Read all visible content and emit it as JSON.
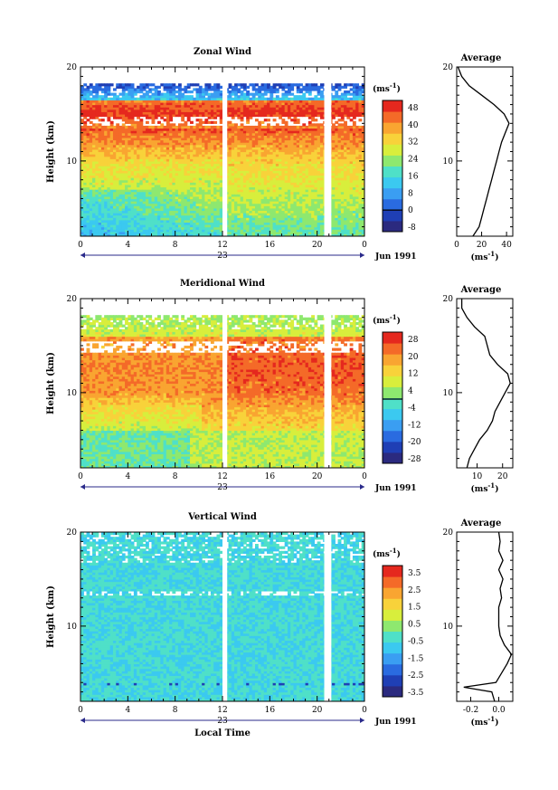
{
  "figure": {
    "date_label": "Jun 1991",
    "day_label": "23",
    "xlabel": "Local Time",
    "unit_label": "(ms",
    "unit_exp": "-1",
    "unit_close": ")"
  },
  "chart_data": [
    {
      "type": "heatmap",
      "title": "Zonal Wind",
      "ylabel": "Height (km)",
      "xlabel": "",
      "x_ticks": [
        "0",
        "4",
        "8",
        "12",
        "16",
        "20",
        "0"
      ],
      "xlim_hours": [
        0,
        24
      ],
      "y_ticks": [
        "10",
        "20"
      ],
      "ylim_km": [
        2,
        20
      ],
      "colorbar": {
        "ticks": [
          "-8",
          "0",
          "8",
          "16",
          "24",
          "32",
          "40",
          "48"
        ],
        "levels": [
          -8,
          0,
          8,
          16,
          24,
          32,
          40,
          48
        ],
        "zero_line": 0
      },
      "profile": {
        "title": "Average",
        "x_ticks": [
          "0",
          "20",
          "40"
        ],
        "xlim": [
          0,
          45
        ],
        "xlabel_unit": "ms-1",
        "points": [
          [
            2,
            13
          ],
          [
            3,
            18
          ],
          [
            4,
            20
          ],
          [
            5,
            22
          ],
          [
            6,
            24
          ],
          [
            7,
            26
          ],
          [
            8,
            28
          ],
          [
            9,
            30
          ],
          [
            10,
            32
          ],
          [
            11,
            34
          ],
          [
            12,
            36
          ],
          [
            13,
            39
          ],
          [
            14,
            42
          ],
          [
            15,
            38
          ],
          [
            16,
            30
          ],
          [
            17,
            20
          ],
          [
            18,
            10
          ],
          [
            19,
            4
          ],
          [
            20,
            1
          ]
        ]
      },
      "gaps_hours": [
        [
          12.0,
          12.4
        ],
        [
          20.6,
          21.2
        ]
      ]
    },
    {
      "type": "heatmap",
      "title": "Meridional Wind",
      "ylabel": "Height (km)",
      "xlabel": "",
      "x_ticks": [
        "0",
        "4",
        "8",
        "12",
        "16",
        "20",
        "0"
      ],
      "xlim_hours": [
        0,
        24
      ],
      "y_ticks": [
        "10",
        "20"
      ],
      "ylim_km": [
        2,
        20
      ],
      "colorbar": {
        "ticks": [
          "-28",
          "-20",
          "-12",
          "-4",
          "4",
          "12",
          "20",
          "28"
        ],
        "levels": [
          -28,
          -20,
          -12,
          -4,
          4,
          12,
          20,
          28
        ],
        "zero_line": 0
      },
      "profile": {
        "title": "Average",
        "x_ticks": [
          "10",
          "20"
        ],
        "xlim": [
          2,
          24
        ],
        "xlabel_unit": "ms-1",
        "points": [
          [
            2,
            6
          ],
          [
            3,
            7
          ],
          [
            4,
            9
          ],
          [
            5,
            11
          ],
          [
            6,
            14
          ],
          [
            7,
            16
          ],
          [
            8,
            17
          ],
          [
            9,
            19
          ],
          [
            10,
            21
          ],
          [
            11,
            23
          ],
          [
            12,
            22
          ],
          [
            13,
            18
          ],
          [
            14,
            15
          ],
          [
            15,
            14
          ],
          [
            16,
            13
          ],
          [
            17,
            9
          ],
          [
            18,
            6
          ],
          [
            19,
            4
          ],
          [
            20,
            4
          ]
        ]
      },
      "gaps_hours": [
        [
          12.0,
          12.4
        ],
        [
          20.6,
          21.2
        ]
      ]
    },
    {
      "type": "heatmap",
      "title": "Vertical Wind",
      "ylabel": "Height (km)",
      "xlabel": "Local Time",
      "x_ticks": [
        "0",
        "4",
        "8",
        "12",
        "16",
        "20",
        "0"
      ],
      "xlim_hours": [
        0,
        24
      ],
      "y_ticks": [
        "10",
        "20"
      ],
      "ylim_km": [
        2,
        20
      ],
      "colorbar": {
        "ticks": [
          "-3.5",
          "-2.5",
          "-1.5",
          "-0.5",
          "0.5",
          "1.5",
          "2.5",
          "3.5"
        ],
        "levels": [
          -3.5,
          -2.5,
          -1.5,
          -0.5,
          0.5,
          1.5,
          2.5,
          3.5
        ],
        "zero_line": null
      },
      "profile": {
        "title": "Average",
        "x_ticks": [
          "-0.2",
          "0.0"
        ],
        "xlim": [
          -0.3,
          0.1
        ],
        "xlabel_unit": "ms-1",
        "points": [
          [
            2,
            -0.03
          ],
          [
            3,
            -0.05
          ],
          [
            3.5,
            -0.25
          ],
          [
            4,
            -0.02
          ],
          [
            5,
            0.02
          ],
          [
            6,
            0.06
          ],
          [
            7,
            0.09
          ],
          [
            8,
            0.04
          ],
          [
            9,
            0.01
          ],
          [
            10,
            0.0
          ],
          [
            11,
            0.0
          ],
          [
            12,
            0.0
          ],
          [
            13,
            0.02
          ],
          [
            14,
            0.01
          ],
          [
            15,
            0.03
          ],
          [
            16,
            0.0
          ],
          [
            17,
            0.03
          ],
          [
            18,
            0.0
          ],
          [
            19,
            0.01
          ],
          [
            20,
            0.0
          ]
        ]
      },
      "gaps_hours": [
        [
          12.0,
          12.4
        ],
        [
          20.6,
          21.2
        ]
      ]
    }
  ]
}
